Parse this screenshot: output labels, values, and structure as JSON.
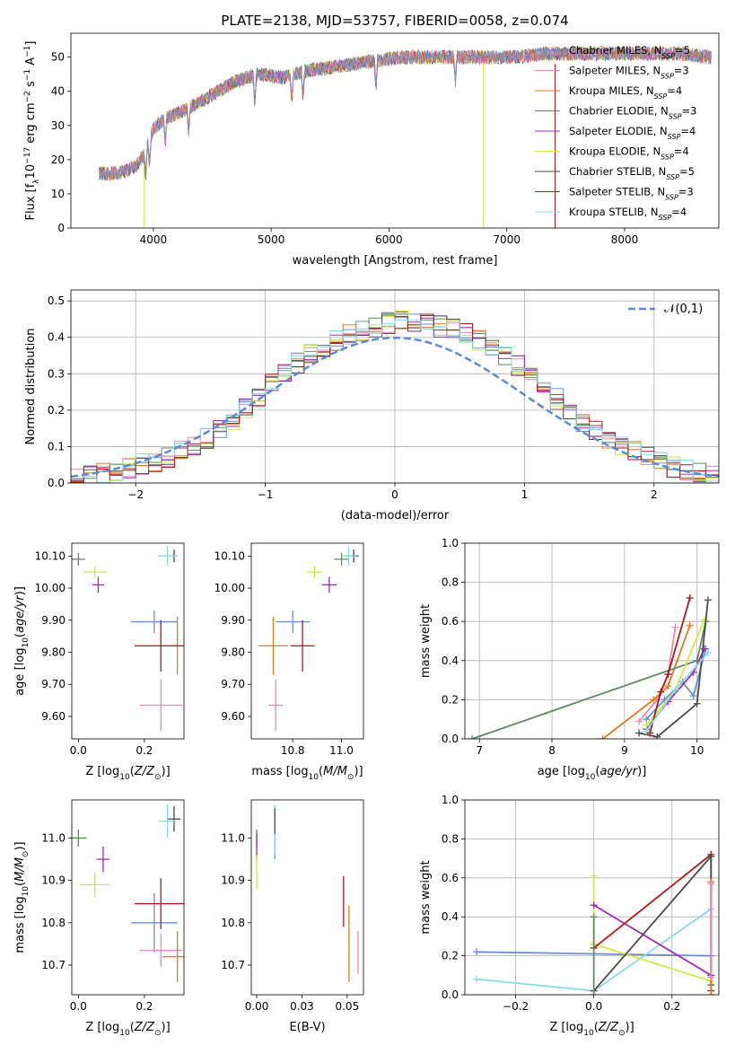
{
  "figure": {
    "title": "PLATE=2138, MJD=53757, FIBERID=0058, z=0.074"
  },
  "chart_data": [
    {
      "id": "spectrum",
      "type": "line",
      "title": "PLATE=2138, MJD=53757, FIBERID=0058, z=0.074",
      "xlabel": "wavelength [Angstrom, rest frame]",
      "ylabel": "Flux [f_λ10^-17 erg cm^-2 s^-1 A^-1]",
      "xlim": [
        3300,
        8800
      ],
      "ylim": [
        0,
        57
      ],
      "xticks": [
        4000,
        5000,
        6000,
        7000,
        8000
      ],
      "yticks": [
        0,
        10,
        20,
        30,
        40,
        50
      ],
      "legend_position": "top-right",
      "continuum_x": [
        3540,
        3700,
        3850,
        3930,
        4000,
        4100,
        4300,
        4500,
        4700,
        4900,
        5100,
        5300,
        5500,
        5700,
        5900,
        6100,
        6300,
        6500,
        6700,
        6900,
        7100,
        7300,
        7500,
        7700,
        7900,
        8100,
        8300,
        8500,
        8700
      ],
      "continuum_y": [
        16,
        16,
        18,
        22,
        29,
        32,
        35,
        39,
        43,
        45,
        44,
        46,
        47,
        48,
        49,
        50,
        50,
        50,
        50,
        50,
        50,
        51,
        51,
        51,
        51,
        51,
        51,
        51,
        50
      ],
      "series": [
        {
          "name": "Chabrier MILES, N_SSP=5",
          "color": "#6a8fd6"
        },
        {
          "name": "Salpeter MILES, N_SSP=3",
          "color": "#e98ab4"
        },
        {
          "name": "Kroupa MILES, N_SSP=4",
          "color": "#e07b1f"
        },
        {
          "name": "Chabrier ELODIE, N_SSP=3",
          "color": "#5d8b62"
        },
        {
          "name": "Salpeter ELODIE, N_SSP=4",
          "color": "#a42ab8"
        },
        {
          "name": "Kroupa ELODIE, N_SSP=4",
          "color": "#d4e84a"
        },
        {
          "name": "Chabrier STELIB, N_SSP=5",
          "color": "#4a4a4a"
        },
        {
          "name": "Salpeter STELIB, N_SSP=3",
          "color": "#b0181c"
        },
        {
          "name": "Kroupa STELIB, N_SSP=4",
          "color": "#87dbe0"
        }
      ]
    },
    {
      "id": "residuals",
      "type": "bar",
      "xlabel": "(data-model)/error",
      "ylabel": "Normed distribution",
      "xlim": [
        -2.5,
        2.5
      ],
      "ylim": [
        0,
        0.53
      ],
      "xticks": [
        -2,
        -1,
        0,
        1,
        2
      ],
      "yticks": [
        0.0,
        0.1,
        0.2,
        0.3,
        0.4,
        0.5
      ],
      "grid": true,
      "legend": "N(0,1)",
      "legend_position": "top-right",
      "gaussian": {
        "mean": 0,
        "sigma": 1,
        "color": "#5b8bd8"
      },
      "bin_width": 0.1,
      "bin_start": -2.5,
      "hist": [
        0.012,
        0.018,
        0.025,
        0.033,
        0.04,
        0.05,
        0.06,
        0.07,
        0.085,
        0.1,
        0.12,
        0.145,
        0.175,
        0.205,
        0.24,
        0.27,
        0.3,
        0.33,
        0.35,
        0.37,
        0.39,
        0.41,
        0.42,
        0.43,
        0.44,
        0.45,
        0.445,
        0.44,
        0.43,
        0.42,
        0.41,
        0.395,
        0.38,
        0.35,
        0.32,
        0.29,
        0.26,
        0.23,
        0.2,
        0.17,
        0.14,
        0.12,
        0.1,
        0.085,
        0.07,
        0.055,
        0.045,
        0.035,
        0.025,
        0.018
      ]
    },
    {
      "id": "age-vs-Z",
      "type": "scatter",
      "xlabel": "Z [log10(Z/Z☉)]",
      "ylabel": "age  [log10(age/yr)]",
      "xlim": [
        -0.02,
        0.32
      ],
      "ylim": [
        9.53,
        10.14
      ],
      "xticks": [
        0.0,
        0.2
      ],
      "yticks": [
        9.6,
        9.7,
        9.8,
        9.9,
        10.0,
        10.1
      ],
      "points": [
        {
          "x": 0.23,
          "y": 9.895,
          "xerr": 0.07,
          "yerr": 0.035,
          "color": "#6a8fd6"
        },
        {
          "x": 0.25,
          "y": 9.635,
          "xerr": 0.065,
          "yerr": 0.08,
          "color": "#e98ab4"
        },
        {
          "x": 0.3,
          "y": 9.82,
          "xerr": 0.01,
          "yerr": 0.09,
          "color": "#e07b1f"
        },
        {
          "x": 0.0,
          "y": 10.09,
          "xerr": 0.02,
          "yerr": 0.02,
          "color": "#5d8b62"
        },
        {
          "x": 0.06,
          "y": 10.01,
          "xerr": 0.018,
          "yerr": 0.025,
          "color": "#a42ab8"
        },
        {
          "x": 0.05,
          "y": 10.05,
          "xerr": 0.035,
          "yerr": 0.02,
          "color": "#d4e84a"
        },
        {
          "x": 0.29,
          "y": 10.1,
          "xerr": 0.01,
          "yerr": 0.02,
          "color": "#4a4a4a"
        },
        {
          "x": 0.25,
          "y": 9.82,
          "xerr": 0.08,
          "yerr": 0.08,
          "color": "#b0181c"
        },
        {
          "x": 0.27,
          "y": 10.1,
          "xerr": 0.03,
          "yerr": 0.03,
          "color": "#87dbe0"
        }
      ]
    },
    {
      "id": "age-vs-mass",
      "type": "scatter",
      "xlabel": "mass [log10(M/M☉)]",
      "ylabel": "",
      "xlim": [
        10.63,
        11.09
      ],
      "ylim": [
        9.53,
        10.14
      ],
      "xticks": [
        10.8,
        11.0
      ],
      "yticks": [
        9.6,
        9.7,
        9.8,
        9.9,
        10.0,
        10.1
      ],
      "points": [
        {
          "x": 10.8,
          "y": 9.895,
          "xerr": 0.07,
          "yerr": 0.035,
          "color": "#6a8fd6"
        },
        {
          "x": 10.73,
          "y": 9.635,
          "xerr": 0.03,
          "yerr": 0.08,
          "color": "#e98ab4"
        },
        {
          "x": 10.72,
          "y": 9.82,
          "xerr": 0.06,
          "yerr": 0.09,
          "color": "#e07b1f"
        },
        {
          "x": 11.0,
          "y": 10.09,
          "xerr": 0.03,
          "yerr": 0.02,
          "color": "#5d8b62"
        },
        {
          "x": 10.95,
          "y": 10.01,
          "xerr": 0.03,
          "yerr": 0.025,
          "color": "#a42ab8"
        },
        {
          "x": 10.89,
          "y": 10.05,
          "xerr": 0.03,
          "yerr": 0.02,
          "color": "#d4e84a"
        },
        {
          "x": 11.05,
          "y": 10.1,
          "xerr": 0.02,
          "yerr": 0.02,
          "color": "#4a4a4a"
        },
        {
          "x": 10.84,
          "y": 9.82,
          "xerr": 0.05,
          "yerr": 0.08,
          "color": "#b0181c"
        },
        {
          "x": 11.03,
          "y": 10.1,
          "xerr": 0.03,
          "yerr": 0.03,
          "color": "#87dbe0"
        }
      ]
    },
    {
      "id": "weight-vs-age",
      "type": "line",
      "xlabel": "age  [log10(age/yr)]",
      "ylabel": "mass weight",
      "xlim": [
        6.8,
        10.3
      ],
      "ylim": [
        0,
        1.0
      ],
      "xticks": [
        7,
        8,
        9,
        10
      ],
      "yticks": [
        0.0,
        0.2,
        0.4,
        0.6,
        0.8,
        1.0
      ],
      "grid": true,
      "series": [
        {
          "color": "#6a8fd6",
          "x": [
            9.3,
            9.55,
            9.8,
            9.95,
            10.12
          ],
          "y": [
            0.1,
            0.2,
            0.29,
            0.22,
            0.46
          ]
        },
        {
          "color": "#e98ab4",
          "x": [
            9.2,
            9.45,
            9.6,
            9.7
          ],
          "y": [
            0.09,
            0.2,
            0.33,
            0.57
          ]
        },
        {
          "color": "#e07b1f",
          "x": [
            8.7,
            9.4,
            9.6,
            9.9
          ],
          "y": [
            0.0,
            0.2,
            0.27,
            0.58
          ]
        },
        {
          "color": "#5d8b62",
          "x": [
            6.9,
            10.0,
            10.12
          ],
          "y": [
            0.0,
            0.4,
            0.6
          ]
        },
        {
          "color": "#a42ab8",
          "x": [
            9.3,
            9.6,
            9.95,
            10.1
          ],
          "y": [
            0.05,
            0.19,
            0.34,
            0.46
          ]
        },
        {
          "color": "#d4e84a",
          "x": [
            9.3,
            9.7,
            10.1
          ],
          "y": [
            0.07,
            0.25,
            0.61
          ]
        },
        {
          "color": "#4a4a4a",
          "x": [
            9.2,
            9.45,
            10.0,
            10.15
          ],
          "y": [
            0.03,
            0.01,
            0.18,
            0.71
          ]
        },
        {
          "color": "#b0181c",
          "x": [
            9.35,
            9.5,
            9.6,
            9.9
          ],
          "y": [
            0.03,
            0.24,
            0.33,
            0.72
          ]
        },
        {
          "color": "#87dbe0",
          "x": [
            9.3,
            9.7,
            10.15
          ],
          "y": [
            0.04,
            0.25,
            0.44
          ]
        }
      ]
    },
    {
      "id": "mass-vs-Z",
      "type": "scatter",
      "xlabel": "Z [log10(Z/Z☉)]",
      "ylabel": "mass [log10(M/M☉)]",
      "xlim": [
        -0.02,
        0.32
      ],
      "ylim": [
        10.63,
        11.09
      ],
      "xticks": [
        0.0,
        0.2
      ],
      "yticks": [
        10.7,
        10.8,
        10.9,
        11.0
      ],
      "points": [
        {
          "x": 0.23,
          "y": 10.8,
          "xerr": 0.07,
          "yerr": 0.07,
          "color": "#6a8fd6"
        },
        {
          "x": 0.25,
          "y": 10.735,
          "xerr": 0.065,
          "yerr": 0.04,
          "color": "#e98ab4"
        },
        {
          "x": 0.3,
          "y": 10.72,
          "xerr": 0.045,
          "yerr": 0.06,
          "color": "#e07b1f"
        },
        {
          "x": 0.0,
          "y": 11.0,
          "xerr": 0.025,
          "yerr": 0.02,
          "color": "#5d8b62"
        },
        {
          "x": 0.075,
          "y": 10.95,
          "xerr": 0.02,
          "yerr": 0.03,
          "color": "#a42ab8"
        },
        {
          "x": 0.05,
          "y": 10.89,
          "xerr": 0.045,
          "yerr": 0.03,
          "color": "#d4e84a"
        },
        {
          "x": 0.29,
          "y": 11.045,
          "xerr": 0.02,
          "yerr": 0.03,
          "color": "#4a4a4a"
        },
        {
          "x": 0.25,
          "y": 10.845,
          "xerr": 0.08,
          "yerr": 0.06,
          "color": "#b0181c"
        },
        {
          "x": 0.27,
          "y": 11.04,
          "xerr": 0.025,
          "yerr": 0.04,
          "color": "#87dbe0"
        }
      ]
    },
    {
      "id": "mass-vs-EBV",
      "type": "scatter",
      "xlabel": "E(B-V)",
      "ylabel": "",
      "xlim": [
        -0.003,
        0.059
      ],
      "ylim": [
        10.63,
        11.09
      ],
      "xticks": [
        0.0,
        0.025,
        0.05
      ],
      "yticks": [
        10.7,
        10.8,
        10.9,
        11.0
      ],
      "points": [
        {
          "x": 0.0,
          "y": 11.0,
          "xerr": 0,
          "yerr": 0.02,
          "color": "#5d8b62"
        },
        {
          "x": 0.0,
          "y": 10.98,
          "xerr": 0,
          "yerr": 0.03,
          "color": "#a42ab8"
        },
        {
          "x": 0.0,
          "y": 10.92,
          "xerr": 0,
          "yerr": 0.04,
          "color": "#d4e84a"
        },
        {
          "x": 0.01,
          "y": 11.0,
          "xerr": 0,
          "yerr": 0.05,
          "color": "#6a8fd6"
        },
        {
          "x": 0.01,
          "y": 11.02,
          "xerr": 0,
          "yerr": 0.06,
          "color": "#87dbe0"
        },
        {
          "x": 0.01,
          "y": 11.04,
          "xerr": 0,
          "yerr": 0.03,
          "color": "#4a4a4a"
        },
        {
          "x": 0.048,
          "y": 10.85,
          "xerr": 0,
          "yerr": 0.06,
          "color": "#b0181c"
        },
        {
          "x": 0.051,
          "y": 10.75,
          "xerr": 0,
          "yerr": 0.09,
          "color": "#e07b1f"
        },
        {
          "x": 0.056,
          "y": 10.73,
          "xerr": 0,
          "yerr": 0.05,
          "color": "#e98ab4"
        }
      ]
    },
    {
      "id": "weight-vs-Z",
      "type": "line",
      "xlabel": "Z [log10(Z/Z☉)]",
      "ylabel": "mass weight",
      "xlim": [
        -0.33,
        0.32
      ],
      "ylim": [
        0,
        1.0
      ],
      "xticks": [
        -0.2,
        0.0,
        0.2
      ],
      "yticks": [
        0.0,
        0.2,
        0.4,
        0.6,
        0.8,
        1.0
      ],
      "grid": true,
      "series": [
        {
          "color": "#6a8fd6",
          "x": [
            -0.3,
            0.3
          ],
          "y": [
            0.22,
            0.2
          ]
        },
        {
          "color": "#87dbe0",
          "x": [
            -0.3,
            0.0,
            0.3
          ],
          "y": [
            0.08,
            0.02,
            0.44
          ]
        },
        {
          "color": "#d4e84a",
          "x": [
            0.0,
            0.0,
            0.3
          ],
          "y": [
            0.61,
            0.26,
            0.07
          ]
        },
        {
          "color": "#a42ab8",
          "x": [
            0.0,
            0.3
          ],
          "y": [
            0.46,
            0.1
          ]
        },
        {
          "color": "#b0181c",
          "x": [
            0.0,
            0.3,
            0.3
          ],
          "y": [
            0.24,
            0.72,
            0.02
          ]
        },
        {
          "color": "#4a4a4a",
          "x": [
            0.0,
            0.3,
            0.3
          ],
          "y": [
            0.02,
            0.71,
            0.05
          ]
        },
        {
          "color": "#e07b1f",
          "x": [
            0.3,
            0.3
          ],
          "y": [
            0.58,
            0.0
          ]
        },
        {
          "color": "#e98ab4",
          "x": [
            0.3,
            0.3
          ],
          "y": [
            0.57,
            0.09
          ]
        },
        {
          "color": "#5d8b62",
          "x": [
            0.0,
            0.0
          ],
          "y": [
            0.4,
            0.0
          ]
        }
      ]
    }
  ]
}
